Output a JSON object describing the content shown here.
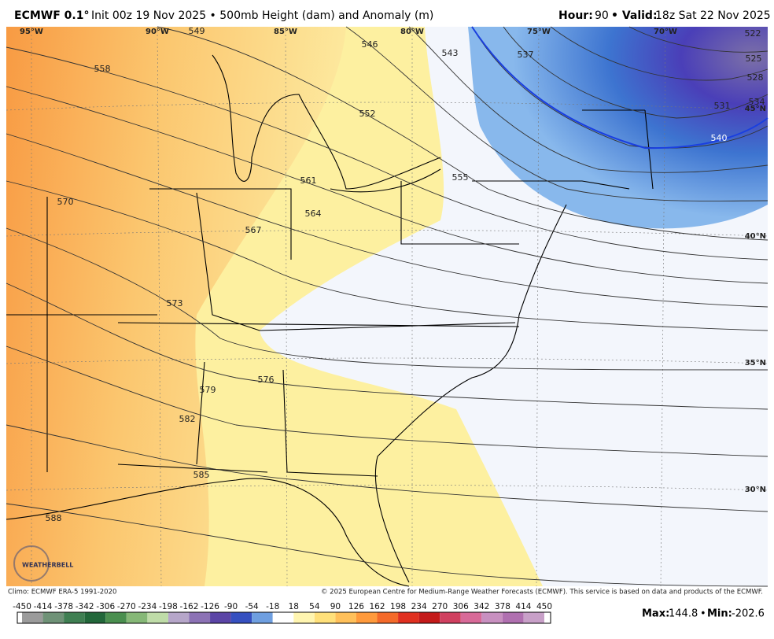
{
  "header": {
    "model": "ECMWF 0.1°",
    "description": "Init 00z 19 Nov 2025 • 500mb Height (dam) and Anomaly (m)",
    "hour_label": "Hour:",
    "hour": "90",
    "valid_label": "• Valid:",
    "valid": "18z Sat 22 Nov 2025"
  },
  "map": {
    "longitude_labels": [
      "95°W",
      "90°W",
      "85°W",
      "80°W",
      "75°W",
      "70°W"
    ],
    "latitude_labels": [
      "45°N",
      "40°N",
      "35°N",
      "30°N"
    ],
    "contour_labels": [
      522,
      525,
      528,
      531,
      534,
      537,
      540,
      543,
      546,
      549,
      552,
      555,
      558,
      561,
      564,
      567,
      570,
      573,
      576,
      579,
      582,
      585,
      588
    ],
    "logo": "WEATHERBELL"
  },
  "footer": {
    "climo": "Climo: ECMWF ERA-5 1991-2020",
    "copyright": "© 2025 European Centre for Medium-Range Weather Forecasts (ECMWF). This service is based on data and products of the ECMWF.",
    "max_label": "Max:",
    "max": "144.8",
    "separator": "•",
    "min_label": "Min:",
    "min": "-202.6"
  },
  "colorbar": {
    "ticks": [
      -450,
      -414,
      -378,
      -342,
      -306,
      -270,
      -234,
      -198,
      -162,
      -126,
      -90,
      -54,
      -18,
      18,
      54,
      90,
      126,
      162,
      198,
      234,
      270,
      306,
      342,
      378,
      414,
      450
    ]
  }
}
